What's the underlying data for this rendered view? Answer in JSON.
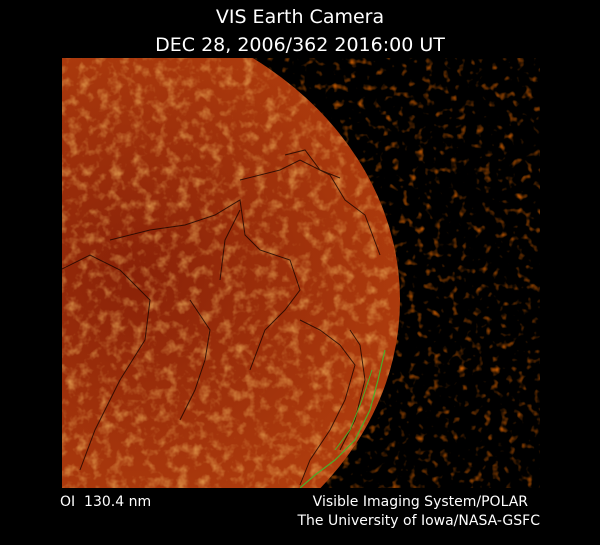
{
  "header": {
    "title": "VIS Earth Camera",
    "timestamp": "DEC 28, 2006/362 2016:00 UT"
  },
  "footer": {
    "filter": "OI  130.4 nm",
    "instrument": "Visible Imaging System/POLAR",
    "credit": "The University of Iowa/NASA-GSFC"
  }
}
